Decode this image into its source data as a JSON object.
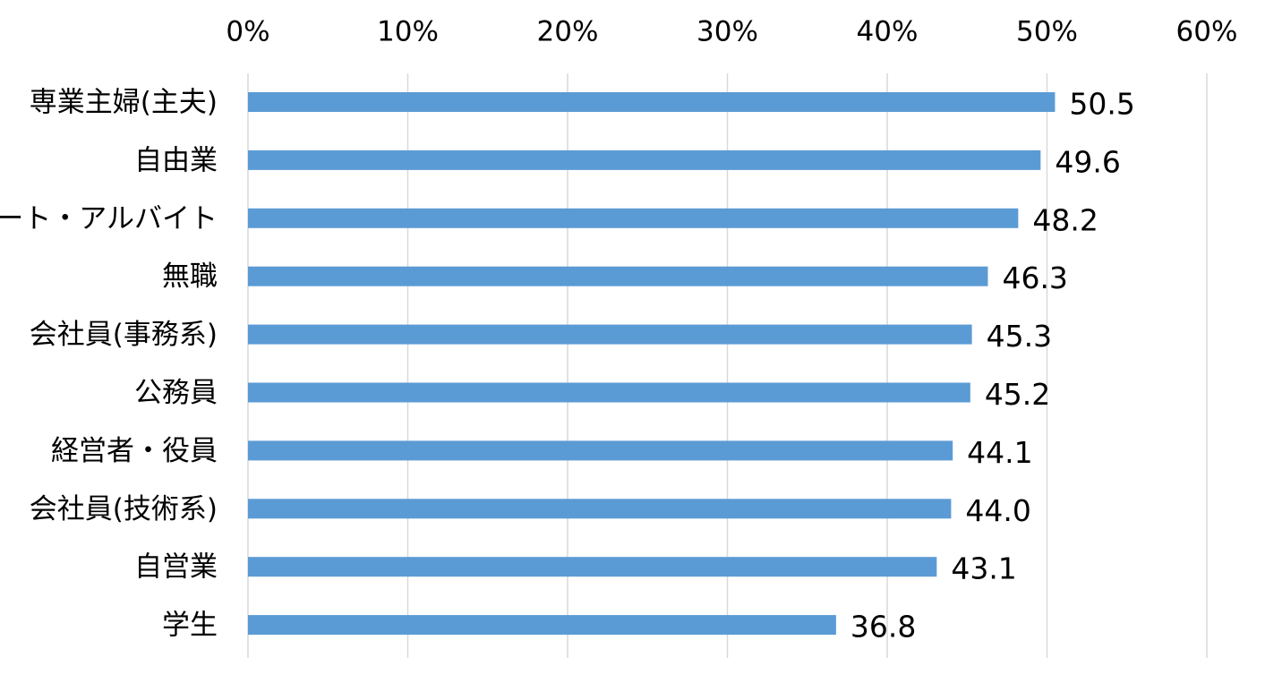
{
  "chart_data": {
    "type": "bar",
    "orientation": "horizontal",
    "categories": [
      "専業主婦(主夫)",
      "自由業",
      "パート・アルバイト",
      "無職",
      "会社員(事務系)",
      "公務員",
      "経営者・役員",
      "会社員(技術系)",
      "自営業",
      "学生"
    ],
    "values": [
      50.5,
      49.6,
      48.2,
      46.3,
      45.3,
      45.2,
      44.1,
      44.0,
      43.1,
      36.8
    ],
    "value_labels": [
      "50.5",
      "49.6",
      "48.2",
      "46.3",
      "45.3",
      "45.2",
      "44.1",
      "44.0",
      "43.1",
      "36.8"
    ],
    "xlim": [
      0,
      60
    ],
    "x_ticks": [
      0,
      10,
      20,
      30,
      40,
      50,
      60
    ],
    "x_tick_labels": [
      "0%",
      "10%",
      "20%",
      "30%",
      "40%",
      "50%",
      "60%"
    ],
    "x_axis_position": "top",
    "grid": true,
    "legend": false,
    "bar_color": "#5b9bd5",
    "gridline_color": "#d9d9d9"
  }
}
